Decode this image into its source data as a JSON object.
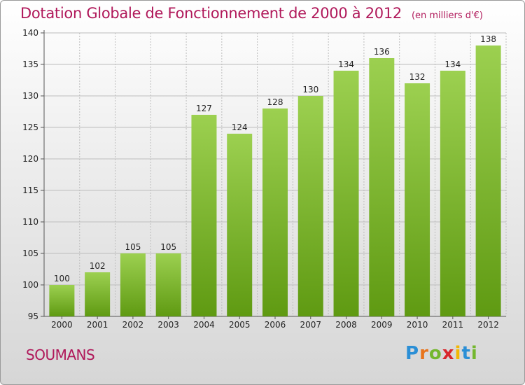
{
  "title": "Dotation Globale de Fonctionnement de 2000 à 2012",
  "subtitle": "(en milliers d'€)",
  "commune": "SOUMANS",
  "logo": {
    "text": "Proxiti",
    "colors": [
      "#2b8fd6",
      "#e8741c",
      "#74b72e",
      "#d9262c",
      "#f2b705",
      "#2b8fd6",
      "#74b72e"
    ]
  },
  "colors": {
    "title": "#b0185a",
    "bar_top": "#9cd050",
    "bar_bottom": "#5f9a12",
    "grid": "#bdbdbd"
  },
  "chart_data": {
    "type": "bar",
    "categories": [
      "2000",
      "2001",
      "2002",
      "2003",
      "2004",
      "2005",
      "2006",
      "2007",
      "2008",
      "2009",
      "2010",
      "2011",
      "2012"
    ],
    "values": [
      100,
      102,
      105,
      105,
      127,
      124,
      128,
      130,
      134,
      136,
      132,
      134,
      138
    ],
    "data_labels": [
      "100",
      "102",
      "105",
      "105",
      "127",
      "124",
      "128",
      "130",
      "134",
      "136",
      "132",
      "134",
      "138"
    ],
    "y_ticks": [
      95,
      100,
      105,
      110,
      115,
      120,
      125,
      130,
      135,
      140
    ],
    "ylim": [
      95,
      140
    ],
    "grid": true,
    "legend": "none"
  }
}
